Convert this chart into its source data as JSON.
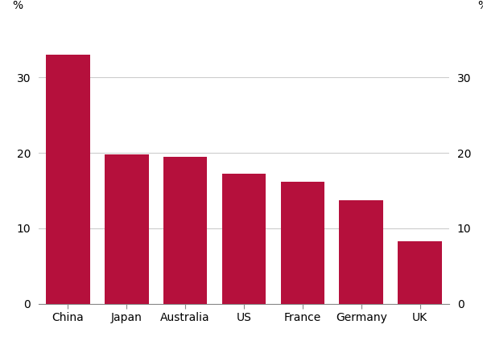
{
  "categories": [
    "China",
    "Japan",
    "Australia",
    "US",
    "France",
    "Germany",
    "UK"
  ],
  "values": [
    33.0,
    19.8,
    19.5,
    17.2,
    16.2,
    13.7,
    8.3
  ],
  "bar_color": "#b5103c",
  "ylim": [
    0,
    38
  ],
  "yticks": [
    0,
    10,
    20,
    30
  ],
  "ylabel_left": "%",
  "ylabel_right": "%",
  "background_color": "#ffffff",
  "grid_color": "#cccccc",
  "bar_width": 0.75,
  "tick_label_fontsize": 10,
  "xlabel_fontsize": 10
}
